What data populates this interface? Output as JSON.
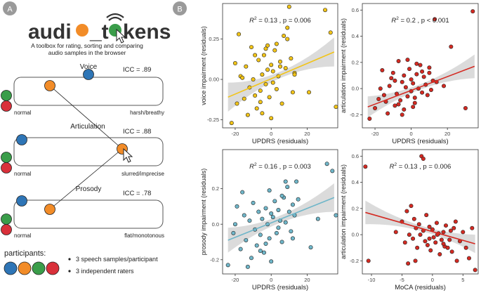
{
  "panel_a": {
    "label": "A",
    "logo_text": "audio_tokens",
    "tagline": [
      "A toolbox for rating, sorting and comparing",
      "audio samples in the browser"
    ],
    "rows": [
      {
        "title": "Voice",
        "icc": "ICC = .89",
        "left": "normal",
        "right": "harsh/breathy"
      },
      {
        "title": "Articulation",
        "icc": "ICC = .88",
        "left": "normal",
        "right": "slurred/imprecise"
      },
      {
        "title": "Prosody",
        "icc": "ICC = .78",
        "left": "normal",
        "right": "flat/monotonous"
      }
    ],
    "participants_label": "participants:",
    "bullets": [
      "3 speech samples/participant",
      "3 independent raters"
    ],
    "colors": {
      "blue": "#2e75b6",
      "orange": "#f28c28",
      "green": "#3a9d4a",
      "red": "#d9303a"
    }
  },
  "panel_b": {
    "label": "B"
  },
  "chart_data": [
    {
      "type": "scatter",
      "annotation_r2": "0.13",
      "annotation_p": "p = 0.006",
      "xlabel": "UPDRS (residuals)",
      "ylabel": "voice impairment (residuals)",
      "xlim": [
        -27,
        37
      ],
      "ylim": [
        -0.3,
        0.47
      ],
      "xticks": [
        -20,
        0,
        20
      ],
      "yticks": [
        -0.25,
        0.0,
        0.25
      ],
      "ytick_labels": [
        "-0.25",
        "0.00",
        "0.25"
      ],
      "color": "#f2c418",
      "fit": {
        "x": [
          -24,
          35
        ],
        "y": [
          -0.11,
          0.17
        ],
        "ci": [
          0.09,
          0.02,
          0.09
        ]
      },
      "x": [
        -22,
        -19,
        -17,
        -15,
        -14,
        -12,
        -11,
        -10,
        -9,
        -8,
        -7,
        -6,
        -5,
        -5,
        -4,
        -3,
        -2,
        -1,
        0,
        0,
        1,
        2,
        3,
        3,
        4,
        5,
        6,
        7,
        8,
        9,
        10,
        11,
        12,
        13,
        -18,
        -16,
        -13,
        -9,
        -6,
        -3,
        1,
        5,
        9,
        13,
        21,
        30,
        33,
        36,
        -20,
        -2
      ],
      "y": [
        -0.27,
        -0.15,
        0.02,
        -0.12,
        0.08,
        -0.05,
        0.2,
        0.0,
        -0.1,
        -0.18,
        0.12,
        -0.07,
        0.03,
        -0.21,
        0.15,
        -0.03,
        0.06,
        -0.11,
        0.09,
        -0.24,
        0.05,
        0.18,
        -0.06,
        0.22,
        0.02,
        0.11,
        -0.15,
        0.27,
        0.07,
        0.32,
        0.45,
        0.13,
        -0.08,
        0.04,
        0.28,
        0.01,
        -0.22,
        0.15,
        -0.14,
        0.19,
        -0.02,
        0.08,
        0.25,
        0.03,
        -0.08,
        0.43,
        0.29,
        -0.17,
        0.1,
        0.21
      ]
    },
    {
      "type": "scatter",
      "annotation_r2": "0.2",
      "annotation_p": "p < 0.001",
      "xlabel": "UPDRS (residuals)",
      "ylabel": "articulation impairment (residuals)",
      "xlim": [
        -27,
        37
      ],
      "ylim": [
        -0.3,
        0.65
      ],
      "xticks": [
        -20,
        0,
        20
      ],
      "yticks": [
        -0.2,
        0.0,
        0.2,
        0.4,
        0.6
      ],
      "ytick_labels": [
        "-0.2",
        "0.0",
        "0.2",
        "0.4",
        "0.6"
      ],
      "color": "#d42a22",
      "fit": {
        "x": [
          -24,
          35
        ],
        "y": [
          -0.14,
          0.17
        ],
        "ci": [
          0.08,
          0.02,
          0.09
        ]
      },
      "x": [
        -23,
        -20,
        -18,
        -16,
        -15,
        -13,
        -12,
        -10,
        -9,
        -8,
        -7,
        -6,
        -5,
        -4,
        -4,
        -3,
        -2,
        -1,
        0,
        0,
        1,
        2,
        3,
        4,
        5,
        6,
        7,
        8,
        9,
        10,
        12,
        14,
        -14,
        -11,
        -7,
        -2,
        2,
        6,
        10,
        13,
        18,
        22,
        30,
        34,
        -17,
        -5,
        3,
        11,
        -9,
        1
      ],
      "y": [
        -0.23,
        -0.15,
        -0.08,
        0.14,
        -0.05,
        -0.19,
        0.02,
        0.12,
        -0.13,
        -0.04,
        0.21,
        -0.09,
        0.05,
        -0.16,
        0.1,
        0.01,
        -0.06,
        0.15,
        -0.02,
        0.07,
        0.04,
        -0.11,
        0.11,
        0.0,
        0.18,
        -0.03,
        0.09,
        0.03,
        -0.05,
        0.12,
        0.06,
        0.05,
        -0.1,
        0.08,
        -0.12,
        0.22,
        -0.07,
        0.13,
        0.16,
        0.53,
        0.02,
        0.32,
        -0.15,
        0.59,
        0.0,
        -0.2,
        0.19,
        -0.01,
        0.06,
        -0.14
      ]
    },
    {
      "type": "scatter",
      "annotation_r2": "0.16",
      "annotation_p": "p = 0.003",
      "xlabel": "UPDRS (residuals)",
      "ylabel": "prosody impairment (residuals)",
      "xlim": [
        -27,
        37
      ],
      "ylim": [
        -0.28,
        0.42
      ],
      "xticks": [
        -20,
        0,
        20
      ],
      "yticks": [
        -0.2,
        0.0,
        0.2
      ],
      "ytick_labels": [
        "-0.2",
        "0.0",
        "0.2"
      ],
      "color": "#6fb6c9",
      "fit": {
        "x": [
          -24,
          35
        ],
        "y": [
          -0.09,
          0.15
        ],
        "ci": [
          0.07,
          0.02,
          0.08
        ]
      },
      "x": [
        -24,
        -21,
        -19,
        -17,
        -15,
        -14,
        -12,
        -11,
        -10,
        -9,
        -8,
        -7,
        -6,
        -5,
        -4,
        -3,
        -2,
        -1,
        0,
        0,
        1,
        2,
        3,
        4,
        5,
        6,
        7,
        8,
        9,
        10,
        11,
        12,
        13,
        14,
        15,
        -16,
        -13,
        -6,
        -1,
        4,
        8,
        12,
        22,
        26,
        31,
        34,
        36,
        -20,
        -3,
        6
      ],
      "y": [
        -0.23,
        -0.05,
        0.1,
        -0.14,
        0.05,
        -0.09,
        0.02,
        -0.19,
        0.12,
        -0.03,
        -0.12,
        0.07,
        -0.06,
        0.03,
        -0.16,
        0.09,
        0.0,
        -0.08,
        0.06,
        -0.21,
        0.04,
        0.13,
        -0.05,
        0.08,
        0.02,
        -0.1,
        0.15,
        0.01,
        0.21,
        0.07,
        -0.04,
        0.11,
        0.05,
        0.24,
        0.14,
        0.18,
        -0.24,
        -0.15,
        0.19,
        -0.02,
        0.24,
        -0.08,
        -0.13,
        0.03,
        0.34,
        0.3,
        0.05,
        0.0,
        -0.11,
        0.16
      ]
    },
    {
      "type": "scatter",
      "annotation_r2": "0.13",
      "annotation_p": "p = 0.006",
      "xlabel": "MoCA (residuals)",
      "ylabel": "articulation impairment (residuals)",
      "xlim": [
        -11.5,
        7.5
      ],
      "ylim": [
        -0.3,
        0.65
      ],
      "xticks": [
        -10,
        -5,
        0,
        5
      ],
      "yticks": [
        -0.2,
        0.0,
        0.2,
        0.4,
        0.6
      ],
      "ytick_labels": [
        "-0.2",
        "0.0",
        "0.2",
        "0.4",
        "0.6"
      ],
      "color": "#d42a22",
      "fit": {
        "x": [
          -11,
          7
        ],
        "y": [
          0.17,
          -0.07
        ],
        "ci": [
          0.09,
          0.02,
          0.07
        ]
      },
      "x": [
        -11,
        -10.5,
        -5,
        -4.5,
        -4.2,
        -3.8,
        -3.5,
        -3.2,
        -3,
        -2.7,
        -2.5,
        -2.2,
        -2,
        -1.8,
        -1.5,
        -1.2,
        -1,
        -0.8,
        -0.5,
        -0.3,
        0,
        0.2,
        0.5,
        0.7,
        1,
        1.2,
        1.5,
        1.8,
        2,
        2.2,
        2.5,
        3,
        3.2,
        3.5,
        4,
        4.5,
        5,
        5.5,
        6,
        6.5,
        7,
        -1.5,
        -2.8,
        1.8,
        -6,
        -0.5,
        3.8,
        0.8,
        -4,
        2.8
      ],
      "y": [
        0.52,
        -0.2,
        0.1,
        -0.06,
        0.18,
        0.0,
        0.22,
        -0.03,
        0.12,
        0.05,
        -0.1,
        0.08,
        0.0,
        0.6,
        0.03,
        -0.05,
        0.15,
        -0.08,
        0.06,
        -0.12,
        0.04,
        -0.02,
        -0.06,
        0.09,
        0.01,
        -0.15,
        -0.04,
        0.02,
        -0.09,
        0.07,
        -0.1,
        0.03,
        -0.13,
        0.05,
        -0.2,
        -0.05,
        0.02,
        -0.1,
        -0.18,
        0.05,
        -0.27,
        0.58,
        -0.2,
        -0.07,
        0.02,
        -0.03,
        0.1,
        0.0,
        -0.22,
        -0.04
      ]
    }
  ]
}
